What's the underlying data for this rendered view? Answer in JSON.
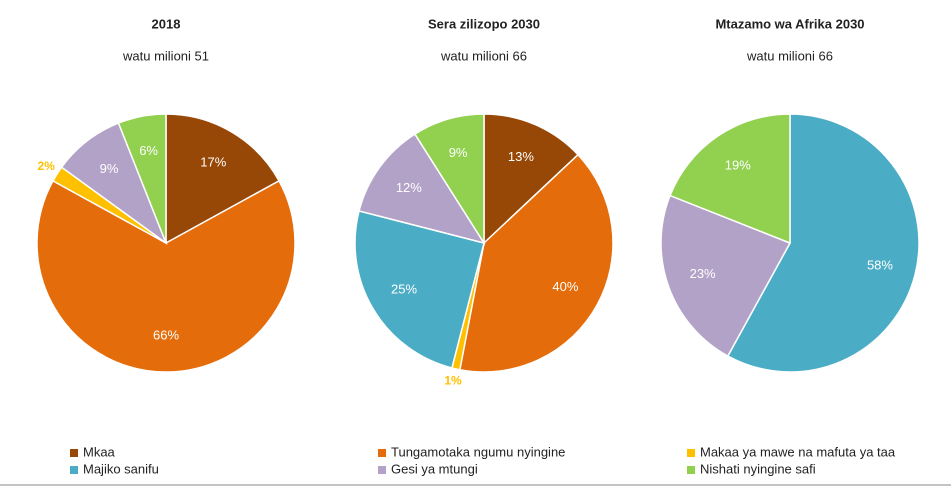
{
  "chart_data": [
    {
      "type": "pie",
      "title": "2018",
      "subtitle": "watu milioni 51",
      "categories": [
        "Mkaa",
        "Tungamotaka ngumu nyingine",
        "Makaa ya mawe na mafuta ya taa",
        "Gesi ya mtungi",
        "Nishati nyingine safi"
      ],
      "values": [
        17,
        66,
        2,
        9,
        6
      ],
      "value_labels": [
        "17%",
        "66%",
        "2%",
        "9%",
        "6%"
      ],
      "colors": [
        "#974706",
        "#e46c0a",
        "#ffc000",
        "#b3a2c7",
        "#92d050"
      ]
    },
    {
      "type": "pie",
      "title": "Sera zilizopo 2030",
      "subtitle": "watu milioni 66",
      "categories": [
        "Mkaa",
        "Tungamotaka ngumu nyingine",
        "Makaa ya mawe na mafuta ya taa",
        "Majiko sanifu",
        "Gesi ya mtungi",
        "Nishati nyingine safi"
      ],
      "values": [
        13,
        40,
        1,
        25,
        12,
        9
      ],
      "value_labels": [
        "13%",
        "40%",
        "1%",
        "25%",
        "12%",
        "9%"
      ],
      "colors": [
        "#974706",
        "#e46c0a",
        "#ffc000",
        "#4bacc6",
        "#b3a2c7",
        "#92d050"
      ]
    },
    {
      "type": "pie",
      "title": "Mtazamo wa Afrika 2030",
      "subtitle": "watu milioni 66",
      "categories": [
        "Majiko sanifu",
        "Gesi ya mtungi",
        "Nishati nyingine safi"
      ],
      "values": [
        58,
        23,
        19
      ],
      "value_labels": [
        "58%",
        "23%",
        "19%"
      ],
      "colors": [
        "#4bacc6",
        "#b3a2c7",
        "#92d050"
      ]
    }
  ],
  "legend": [
    {
      "name": "Mkaa",
      "color": "#974706"
    },
    {
      "name": "Tungamotaka ngumu nyingine",
      "color": "#e46c0a"
    },
    {
      "name": "Makaa ya mawe na mafuta ya taa",
      "color": "#ffc000"
    },
    {
      "name": "Majiko sanifu",
      "color": "#4bacc6"
    },
    {
      "name": "Gesi ya mtungi",
      "color": "#b3a2c7"
    },
    {
      "name": "Nishati nyingine safi",
      "color": "#92d050"
    }
  ]
}
